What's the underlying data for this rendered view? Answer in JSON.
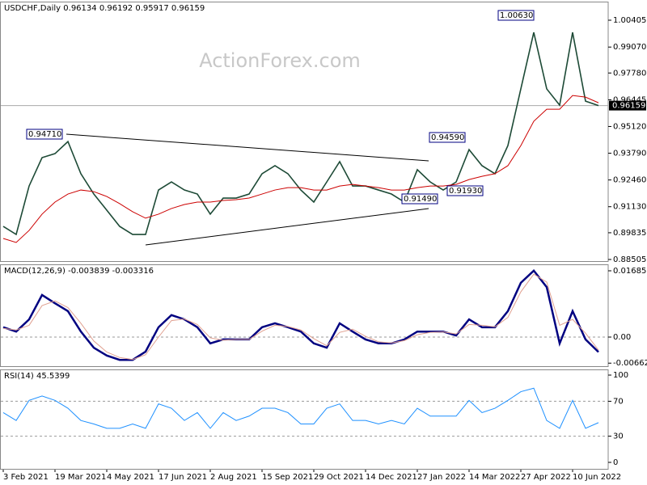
{
  "chart_data": [
    {
      "type": "line",
      "title": "USDCHF,Daily 0.96134 0.96192 0.95917 0.96159",
      "watermark": "ActionForex.com",
      "categories": [
        "3 Feb 2021",
        null,
        null,
        null,
        "19 Mar 2021",
        null,
        null,
        null,
        "4 May 2021",
        null,
        null,
        null,
        "17 Jun 2021",
        null,
        null,
        null,
        "2 Aug 2021",
        null,
        null,
        null,
        "15 Sep 2021",
        null,
        null,
        null,
        "29 Oct 2021",
        null,
        null,
        null,
        "14 Dec 2021",
        null,
        null,
        null,
        "27 Jan 2022",
        null,
        null,
        null,
        "14 Mar 2022",
        null,
        null,
        null,
        "27 Apr 2022",
        null,
        null,
        null,
        "10 Jun 2022",
        null,
        null
      ],
      "series": [
        {
          "name": "USDCHF",
          "color": "#1d4a36",
          "values": [
            0.9015,
            0.8975,
            0.9216,
            0.9357,
            0.9377,
            0.9437,
            0.9277,
            0.9176,
            0.9096,
            0.9015,
            0.8975,
            0.8975,
            0.9196,
            0.9236,
            0.9196,
            0.9176,
            0.9076,
            0.9156,
            0.9156,
            0.9176,
            0.9277,
            0.9317,
            0.9277,
            0.9196,
            0.9136,
            0.9236,
            0.9337,
            0.9216,
            0.9216,
            0.9196,
            0.9176,
            0.9136,
            0.9297,
            0.9236,
            0.9196,
            0.9236,
            0.9397,
            0.9317,
            0.9277,
            0.9417,
            0.9699,
            0.998,
            0.9699,
            0.9618,
            0.998,
            0.9638,
            0.9616
          ]
        },
        {
          "name": "MA",
          "color": "#cc0000",
          "values": [
            0.8955,
            0.8935,
            0.8995,
            0.9076,
            0.9136,
            0.9176,
            0.9196,
            0.9188,
            0.9164,
            0.9128,
            0.9088,
            0.9056,
            0.9076,
            0.9104,
            0.9124,
            0.9136,
            0.9136,
            0.9144,
            0.9148,
            0.9156,
            0.9176,
            0.9196,
            0.9208,
            0.9208,
            0.9196,
            0.9196,
            0.9216,
            0.9224,
            0.9216,
            0.9208,
            0.9196,
            0.9196,
            0.9208,
            0.9216,
            0.9216,
            0.9224,
            0.9248,
            0.9264,
            0.9277,
            0.9317,
            0.9417,
            0.9538,
            0.9598,
            0.9598,
            0.9666,
            0.9658,
            0.963
          ]
        }
      ],
      "ylim": [
        0.88425,
        1.0133
      ],
      "yticks": [
        1.00405,
        {
          "value": 0.9907,
          "label": "0.99070"
        },
        {
          "value": 0.9778,
          "label": "0.97780"
        },
        {
          "value": 0.96445,
          "label": "0.96445"
        },
        {
          "value": 0.9512,
          "label": "0.95120"
        },
        {
          "value": 0.9379,
          "label": "0.93790"
        },
        {
          "value": 0.9246,
          "label": "0.92460"
        },
        {
          "value": 0.9113,
          "label": "0.91130"
        },
        0.89835,
        0.88505
      ],
      "last_price": 0.96159,
      "annotations": [
        "0.94710",
        "1.00630",
        "0.94590",
        "0.91490",
        "0.91930"
      ]
    },
    {
      "type": "line",
      "title": "MACD(12,26,9) -0.003839 -0.003316",
      "series": [
        {
          "name": "MACD",
          "color": "#000080",
          "values": [
            0.0025,
            0.0014,
            0.0045,
            0.0107,
            0.0086,
            0.0066,
            0.0014,
            -0.0027,
            -0.0047,
            -0.0058,
            -0.0058,
            -0.0037,
            0.0025,
            0.0056,
            0.0045,
            0.0025,
            -0.0016,
            -0.0006,
            -0.0006,
            -0.0006,
            0.0025,
            0.0035,
            0.0025,
            0.0014,
            -0.0016,
            -0.0027,
            0.0035,
            0.0014,
            -0.0006,
            -0.0016,
            -0.0016,
            -0.0006,
            0.0014,
            0.0014,
            0.0014,
            0.0004,
            0.0045,
            0.0025,
            0.0025,
            0.0066,
            0.0138,
            0.0169,
            0.0127,
            -0.0016,
            0.0066,
            -0.0006,
            -0.0038
          ]
        },
        {
          "name": "Signal",
          "color": "#e0a090",
          "values": [
            0.0022,
            0.0018,
            0.003,
            0.008,
            0.0092,
            0.0075,
            0.0035,
            -0.001,
            -0.0038,
            -0.0052,
            -0.0057,
            -0.0045,
            0.0,
            0.0042,
            0.0046,
            0.0032,
            -0.0002,
            -0.0008,
            -0.0006,
            -0.0006,
            0.0015,
            0.003,
            0.0027,
            0.0018,
            -0.0004,
            -0.0022,
            0.0012,
            0.002,
            0.0002,
            -0.0012,
            -0.0015,
            -0.0009,
            0.0006,
            0.0012,
            0.0013,
            0.0008,
            0.0032,
            0.003,
            0.0026,
            0.005,
            0.0115,
            0.016,
            0.014,
            0.003,
            0.0045,
            0.001,
            -0.0033
          ]
        }
      ],
      "ylim": [
        -0.0074,
        0.018501
      ],
      "yticks": [
        0.016856,
        {
          "value": 0,
          "label": "0.00"
        },
        -0.006629
      ],
      "levels": [
        0
      ]
    },
    {
      "type": "line",
      "title": "RSI(14) 45.5399",
      "series": [
        {
          "name": "RSI",
          "color": "#1e90ff",
          "values": [
            57,
            48,
            71,
            76,
            71,
            62,
            48,
            44,
            39,
            39,
            44,
            39,
            67,
            62,
            48,
            57,
            39,
            57,
            48,
            53,
            62,
            62,
            57,
            44,
            44,
            62,
            67,
            48,
            48,
            44,
            48,
            44,
            62,
            53,
            53,
            53,
            71,
            57,
            62,
            71,
            81,
            85,
            48,
            39,
            71,
            39,
            45.5
          ]
        }
      ],
      "ylim": [
        -7.4,
        106.5
      ],
      "yticks": [
        100,
        70,
        30,
        0
      ],
      "levels": [
        70,
        30
      ]
    }
  ]
}
